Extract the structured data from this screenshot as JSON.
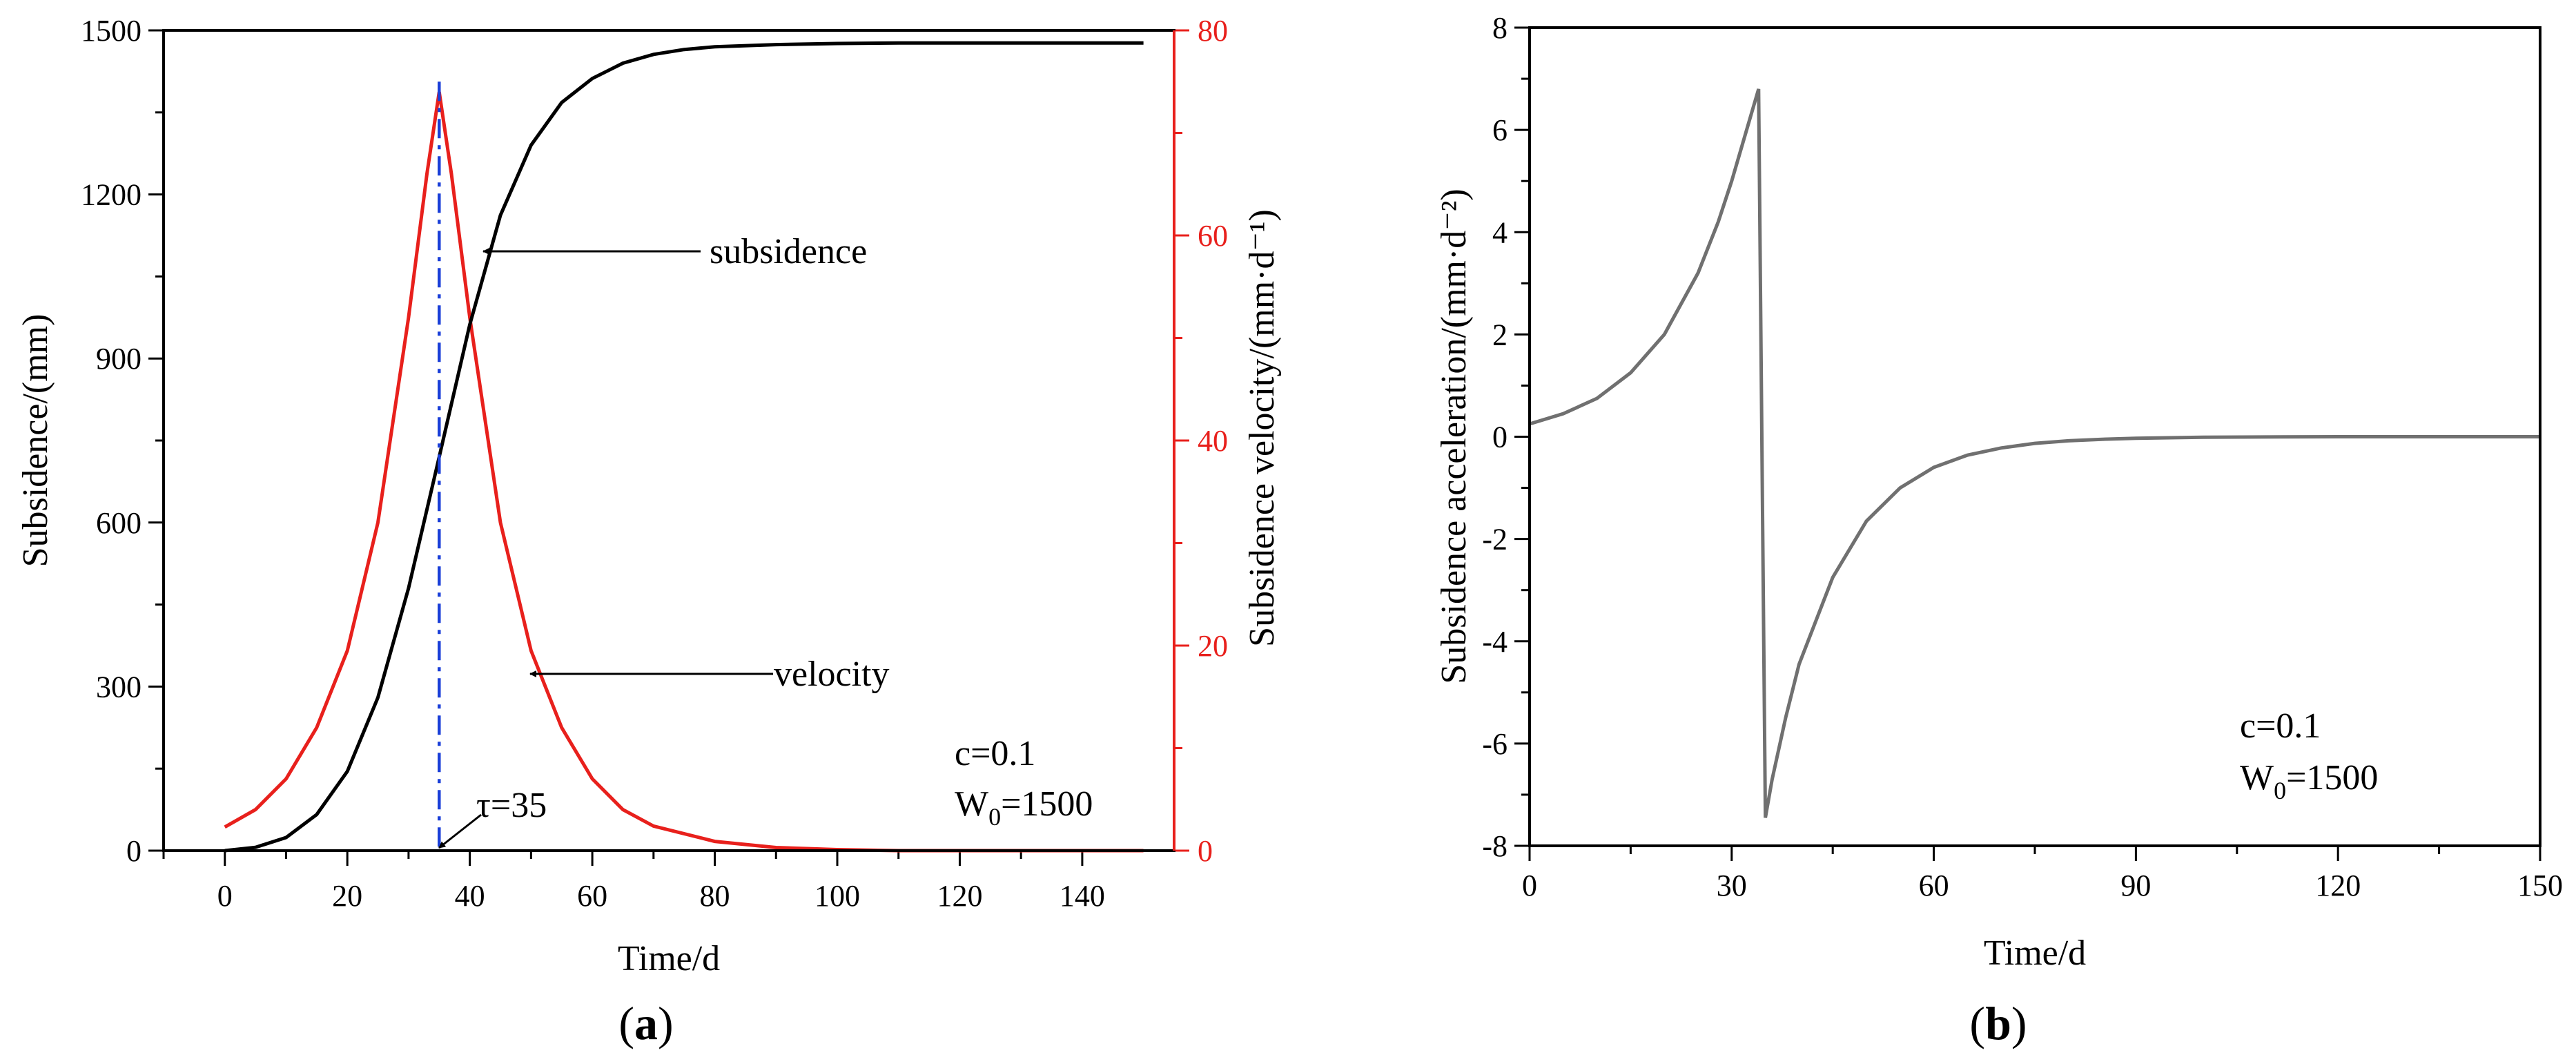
{
  "chart_data": [
    {
      "panel": "a",
      "panel_label": "a",
      "type": "line",
      "xlabel": "Time/d",
      "ylabel": "Subsidence/(mm)",
      "y2label": "Subsidence velocity/(mm·d⁻¹)",
      "xlim": [
        -10,
        155
      ],
      "ylim": [
        0,
        1500
      ],
      "y2lim": [
        0,
        80
      ],
      "xticks": [
        0,
        20,
        40,
        60,
        80,
        100,
        120,
        140
      ],
      "yticks": [
        0,
        300,
        600,
        900,
        1200,
        1500
      ],
      "y2ticks": [
        0,
        20,
        40,
        60,
        80
      ],
      "series": [
        {
          "name": "subsidence",
          "axis": "left",
          "color": "#000000",
          "x": [
            0,
            5,
            10,
            15,
            20,
            25,
            30,
            35,
            40,
            45,
            50,
            55,
            60,
            65,
            70,
            75,
            80,
            90,
            100,
            110,
            120,
            130,
            140,
            150
          ],
          "values": [
            0,
            6,
            24,
            66,
            145,
            280,
            480,
            720,
            962,
            1162,
            1290,
            1368,
            1412,
            1440,
            1456,
            1465,
            1470,
            1474,
            1476,
            1477,
            1477,
            1477,
            1477,
            1477
          ]
        },
        {
          "name": "velocity",
          "axis": "right",
          "color": "#e8201c",
          "x": [
            0,
            5,
            10,
            15,
            20,
            25,
            30,
            33,
            35,
            37,
            40,
            45,
            50,
            55,
            60,
            65,
            70,
            80,
            90,
            100,
            110,
            150
          ],
          "values": [
            2.3,
            4.0,
            7.0,
            12.0,
            19.5,
            32.0,
            52.0,
            66.0,
            74.0,
            66.0,
            52.0,
            32.0,
            19.5,
            12.0,
            7.0,
            4.0,
            2.4,
            0.9,
            0.3,
            0.1,
            0.0,
            0.0
          ]
        }
      ],
      "marker_line": {
        "x": 35,
        "color": "#1a3fd8"
      },
      "annotations": {
        "subsidence_label": "subsidence",
        "velocity_label": "velocity",
        "tau_label": "τ=35",
        "c_label": "c=0.1",
        "w_label_main": "W",
        "w_label_sub": "0",
        "w_label_value": "=1500"
      }
    },
    {
      "panel": "b",
      "panel_label": "b",
      "type": "line",
      "xlabel": "Time/d",
      "ylabel": "Subsidence acceleration/(mm·d⁻²)",
      "xlim": [
        0,
        150
      ],
      "ylim": [
        -8,
        8
      ],
      "xticks": [
        0,
        30,
        60,
        90,
        120,
        150
      ],
      "yticks": [
        -8,
        -6,
        -4,
        -2,
        0,
        2,
        4,
        6,
        8
      ],
      "series": [
        {
          "name": "acceleration",
          "color": "#707070",
          "x": [
            0,
            5,
            10,
            15,
            20,
            25,
            28,
            30,
            32,
            34,
            35,
            36,
            38,
            40,
            45,
            50,
            55,
            60,
            65,
            70,
            75,
            80,
            85,
            90,
            100,
            120,
            150
          ],
          "values": [
            0.25,
            0.45,
            0.75,
            1.25,
            2.0,
            3.2,
            4.2,
            5.0,
            5.9,
            6.8,
            -7.45,
            -6.7,
            -5.5,
            -4.45,
            -2.75,
            -1.65,
            -1.0,
            -0.6,
            -0.36,
            -0.22,
            -0.13,
            -0.08,
            -0.05,
            -0.03,
            -0.01,
            0.0,
            0.0
          ]
        }
      ],
      "annotations": {
        "c_label": "c=0.1",
        "w_label_main": "W",
        "w_label_sub": "0",
        "w_label_value": "=1500"
      }
    }
  ]
}
